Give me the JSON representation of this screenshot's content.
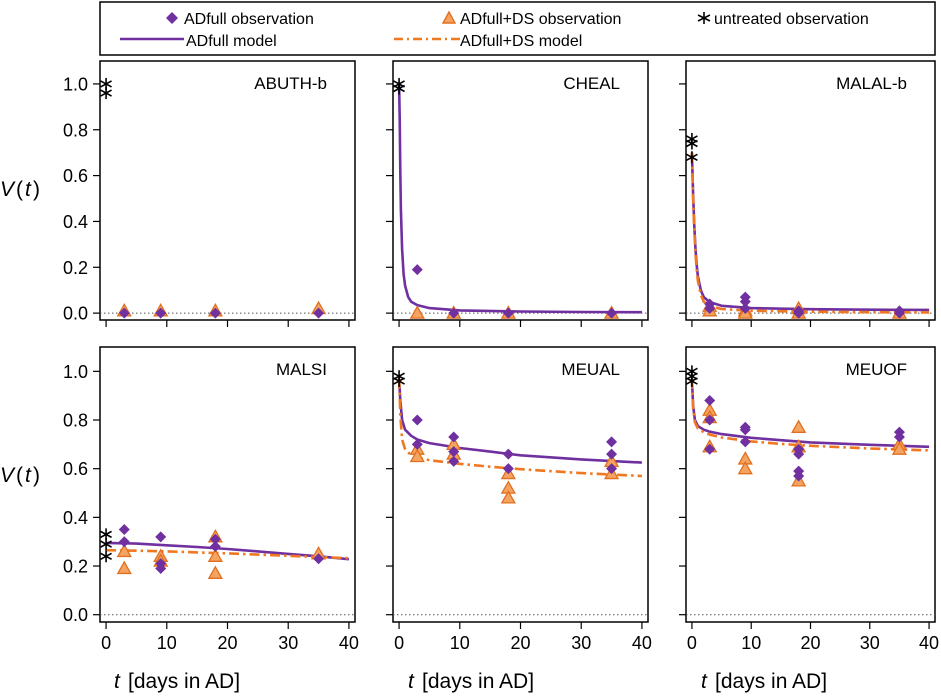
{
  "colors": {
    "adfull": "#7030A0",
    "ds_fill": "#F4A460",
    "ds_stroke": "#E07020",
    "ds_line": "#F07820",
    "ds_text": "#B85A10",
    "untreated": "#000000",
    "zero_line": "#555555"
  },
  "legend": {
    "adfull_obs": "ADfull observation",
    "ds_obs": "ADfull+DS observation",
    "untreated_obs": "untreated observation",
    "adfull_model": "ADfull model",
    "ds_model": "ADfull+DS model"
  },
  "axes": {
    "ylabel_v": "V",
    "ylabel_paren_open": "(",
    "ylabel_t": "t",
    "ylabel_paren_close": ")",
    "xlabel_t": "t",
    "xlabel_rest": "[days in AD]",
    "xticks": [
      0,
      10,
      20,
      30,
      40
    ],
    "xtick_labels": [
      "0",
      "10",
      "20",
      "30",
      "40"
    ],
    "yticks": [
      0.0,
      0.2,
      0.4,
      0.6,
      0.8,
      1.0
    ],
    "ytick_labels": [
      "0.0",
      "0.2",
      "0.4",
      "0.6",
      "0.8",
      "1.0"
    ]
  },
  "chart_data": [
    {
      "type": "scatter",
      "title": "ABUTH-b",
      "xlim": [
        -1,
        41
      ],
      "ylim": [
        -0.03,
        1.1
      ],
      "untreated": [
        [
          0,
          1.0
        ],
        [
          0,
          0.96
        ]
      ],
      "adfull_obs": [
        [
          3,
          0.0
        ],
        [
          9,
          0.0
        ],
        [
          18,
          0.0
        ],
        [
          35,
          0.0
        ]
      ],
      "ds_obs": [
        [
          3,
          0.01
        ],
        [
          9,
          0.01
        ],
        [
          18,
          0.01
        ],
        [
          35,
          0.02
        ]
      ],
      "adfull_model": [],
      "ds_model": []
    },
    {
      "type": "scatter",
      "title": "CHEAL",
      "xlim": [
        -1,
        41
      ],
      "ylim": [
        -0.03,
        1.1
      ],
      "untreated": [
        [
          0,
          1.0
        ],
        [
          0,
          0.98
        ]
      ],
      "adfull_obs": [
        [
          3,
          0.19
        ],
        [
          9,
          0.0
        ],
        [
          18,
          0.0
        ],
        [
          35,
          0.0
        ]
      ],
      "ds_obs": [
        [
          3,
          0.0
        ],
        [
          9,
          0.0
        ],
        [
          18,
          0.0
        ],
        [
          35,
          0.0
        ]
      ],
      "adfull_model": [
        [
          0,
          1.0
        ],
        [
          0.1,
          0.85
        ],
        [
          0.2,
          0.62
        ],
        [
          0.3,
          0.45
        ],
        [
          0.5,
          0.28
        ],
        [
          0.75,
          0.17
        ],
        [
          1,
          0.12
        ],
        [
          1.5,
          0.07
        ],
        [
          2,
          0.05
        ],
        [
          3,
          0.035
        ],
        [
          5,
          0.022
        ],
        [
          10,
          0.012
        ],
        [
          20,
          0.007
        ],
        [
          30,
          0.005
        ],
        [
          40,
          0.004
        ]
      ],
      "ds_model": []
    },
    {
      "type": "scatter",
      "title": "MALAL-b",
      "xlim": [
        -1,
        41
      ],
      "ylim": [
        -0.03,
        1.1
      ],
      "untreated": [
        [
          0,
          0.76
        ],
        [
          0,
          0.74
        ],
        [
          0,
          0.68
        ]
      ],
      "adfull_obs": [
        [
          3,
          0.04
        ],
        [
          3,
          0.02
        ],
        [
          9,
          0.07
        ],
        [
          9,
          0.05
        ],
        [
          9,
          0.02
        ],
        [
          18,
          0.01
        ],
        [
          18,
          0.0
        ],
        [
          35,
          0.0
        ],
        [
          35,
          0.01
        ]
      ],
      "ds_obs": [
        [
          3,
          0.03
        ],
        [
          3,
          0.01
        ],
        [
          9,
          0.01
        ],
        [
          9,
          0.0
        ],
        [
          18,
          0.02
        ],
        [
          18,
          0.0
        ],
        [
          35,
          0.0
        ]
      ],
      "adfull_model": [
        [
          0,
          0.7
        ],
        [
          0.2,
          0.52
        ],
        [
          0.4,
          0.38
        ],
        [
          0.6,
          0.28
        ],
        [
          0.8,
          0.21
        ],
        [
          1,
          0.16
        ],
        [
          1.5,
          0.1
        ],
        [
          2,
          0.07
        ],
        [
          3,
          0.048
        ],
        [
          5,
          0.032
        ],
        [
          10,
          0.022
        ],
        [
          20,
          0.017
        ],
        [
          30,
          0.015
        ],
        [
          40,
          0.014
        ]
      ],
      "ds_model": [
        [
          0,
          0.7
        ],
        [
          0.2,
          0.5
        ],
        [
          0.4,
          0.36
        ],
        [
          0.6,
          0.26
        ],
        [
          0.8,
          0.19
        ],
        [
          1,
          0.14
        ],
        [
          1.5,
          0.08
        ],
        [
          2,
          0.05
        ],
        [
          3,
          0.03
        ],
        [
          5,
          0.018
        ],
        [
          10,
          0.01
        ],
        [
          20,
          0.006
        ],
        [
          30,
          0.004
        ],
        [
          40,
          0.003
        ]
      ]
    },
    {
      "type": "scatter",
      "title": "MALSI",
      "xlim": [
        -1,
        41
      ],
      "ylim": [
        -0.03,
        1.1
      ],
      "untreated": [
        [
          0,
          0.33
        ],
        [
          0,
          0.29
        ],
        [
          0,
          0.24
        ]
      ],
      "adfull_obs": [
        [
          3,
          0.35
        ],
        [
          3,
          0.3
        ],
        [
          9,
          0.32
        ],
        [
          9,
          0.21
        ],
        [
          9,
          0.19
        ],
        [
          18,
          0.31
        ],
        [
          18,
          0.28
        ],
        [
          35,
          0.23
        ]
      ],
      "ds_obs": [
        [
          3,
          0.26
        ],
        [
          3,
          0.19
        ],
        [
          9,
          0.24
        ],
        [
          9,
          0.22
        ],
        [
          18,
          0.32
        ],
        [
          18,
          0.24
        ],
        [
          18,
          0.17
        ],
        [
          35,
          0.25
        ]
      ],
      "adfull_model": [
        [
          0,
          0.295
        ],
        [
          5,
          0.292
        ],
        [
          10,
          0.285
        ],
        [
          15,
          0.278
        ],
        [
          20,
          0.27
        ],
        [
          25,
          0.26
        ],
        [
          30,
          0.25
        ],
        [
          35,
          0.24
        ],
        [
          40,
          0.228
        ]
      ],
      "ds_model": [
        [
          0,
          0.265
        ],
        [
          5,
          0.263
        ],
        [
          10,
          0.26
        ],
        [
          15,
          0.256
        ],
        [
          20,
          0.252
        ],
        [
          25,
          0.247
        ],
        [
          30,
          0.242
        ],
        [
          35,
          0.237
        ],
        [
          40,
          0.232
        ]
      ]
    },
    {
      "type": "scatter",
      "title": "MEUAL",
      "xlim": [
        -1,
        41
      ],
      "ylim": [
        -0.03,
        1.1
      ],
      "untreated": [
        [
          0,
          0.98
        ],
        [
          0,
          0.96
        ]
      ],
      "adfull_obs": [
        [
          3,
          0.8
        ],
        [
          3,
          0.7
        ],
        [
          9,
          0.73
        ],
        [
          9,
          0.67
        ],
        [
          9,
          0.63
        ],
        [
          18,
          0.66
        ],
        [
          18,
          0.6
        ],
        [
          35,
          0.71
        ],
        [
          35,
          0.66
        ],
        [
          35,
          0.6
        ]
      ],
      "ds_obs": [
        [
          3,
          0.68
        ],
        [
          3,
          0.65
        ],
        [
          9,
          0.7
        ],
        [
          9,
          0.66
        ],
        [
          18,
          0.58
        ],
        [
          18,
          0.52
        ],
        [
          18,
          0.48
        ],
        [
          35,
          0.63
        ],
        [
          35,
          0.58
        ]
      ],
      "adfull_model": [
        [
          0,
          0.97
        ],
        [
          0.2,
          0.88
        ],
        [
          0.5,
          0.8
        ],
        [
          1,
          0.76
        ],
        [
          2,
          0.735
        ],
        [
          3,
          0.72
        ],
        [
          5,
          0.705
        ],
        [
          10,
          0.685
        ],
        [
          15,
          0.67
        ],
        [
          20,
          0.655
        ],
        [
          30,
          0.638
        ],
        [
          40,
          0.625
        ]
      ],
      "ds_model": [
        [
          0,
          0.97
        ],
        [
          0.2,
          0.82
        ],
        [
          0.5,
          0.72
        ],
        [
          1,
          0.68
        ],
        [
          2,
          0.655
        ],
        [
          3,
          0.645
        ],
        [
          5,
          0.635
        ],
        [
          10,
          0.62
        ],
        [
          15,
          0.608
        ],
        [
          20,
          0.598
        ],
        [
          30,
          0.582
        ],
        [
          40,
          0.57
        ]
      ]
    },
    {
      "type": "scatter",
      "title": "MEUOF",
      "xlim": [
        -1,
        41
      ],
      "ylim": [
        -0.03,
        1.1
      ],
      "untreated": [
        [
          0,
          1.0
        ],
        [
          0,
          0.98
        ],
        [
          0,
          0.96
        ]
      ],
      "adfull_obs": [
        [
          3,
          0.88
        ],
        [
          3,
          0.8
        ],
        [
          3,
          0.68
        ],
        [
          9,
          0.77
        ],
        [
          9,
          0.76
        ],
        [
          9,
          0.71
        ],
        [
          18,
          0.68
        ],
        [
          18,
          0.66
        ],
        [
          18,
          0.59
        ],
        [
          18,
          0.57
        ],
        [
          35,
          0.75
        ],
        [
          35,
          0.73
        ]
      ],
      "ds_obs": [
        [
          3,
          0.84
        ],
        [
          3,
          0.81
        ],
        [
          3,
          0.69
        ],
        [
          9,
          0.64
        ],
        [
          9,
          0.6
        ],
        [
          18,
          0.77
        ],
        [
          18,
          0.69
        ],
        [
          18,
          0.55
        ],
        [
          35,
          0.7
        ],
        [
          35,
          0.68
        ]
      ],
      "adfull_model": [
        [
          0,
          0.97
        ],
        [
          0.2,
          0.86
        ],
        [
          0.5,
          0.8
        ],
        [
          1,
          0.775
        ],
        [
          2,
          0.76
        ],
        [
          3,
          0.752
        ],
        [
          5,
          0.742
        ],
        [
          10,
          0.727
        ],
        [
          15,
          0.717
        ],
        [
          20,
          0.708
        ],
        [
          30,
          0.698
        ],
        [
          40,
          0.69
        ]
      ],
      "ds_model": [
        [
          0,
          0.97
        ],
        [
          0.2,
          0.85
        ],
        [
          0.5,
          0.79
        ],
        [
          1,
          0.765
        ],
        [
          2,
          0.75
        ],
        [
          3,
          0.74
        ],
        [
          5,
          0.728
        ],
        [
          10,
          0.712
        ],
        [
          15,
          0.702
        ],
        [
          20,
          0.694
        ],
        [
          30,
          0.683
        ],
        [
          40,
          0.675
        ]
      ]
    }
  ]
}
